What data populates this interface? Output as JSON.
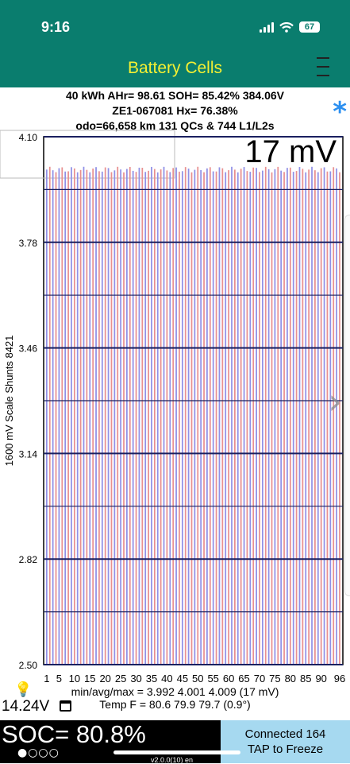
{
  "status_bar": {
    "time": "9:16",
    "battery_level": "67"
  },
  "nav": {
    "title": "Battery Cells",
    "menu_icon": "hamburger-menu-icon"
  },
  "summary": {
    "line1": "40 kWh  AHr= 98.61  SOH= 85.42%  384.06V",
    "line2": "ZE1-067081  Hx= 76.38%",
    "line3": "odo=66,658 km 131 QCs & 744 L1/L2s"
  },
  "chart_data": {
    "type": "bar",
    "ylabel": "1600 mV Scale  Shunts 8421",
    "ylim": [
      2.5,
      4.1
    ],
    "y_ticks": [
      "4.10",
      "3.78",
      "3.46",
      "3.14",
      "2.82",
      "2.50"
    ],
    "x_ticks": [
      "1",
      "5",
      "10",
      "15",
      "20",
      "25",
      "30",
      "35",
      "40",
      "45",
      "50",
      "55",
      "60",
      "65",
      "70",
      "75",
      "80",
      "85",
      "90",
      "96"
    ],
    "delta_label": "17 mV",
    "cell_count": 96,
    "cell_voltage_min": 3.992,
    "cell_voltage_avg": 4.001,
    "cell_voltage_max": 4.009,
    "colors": {
      "odd": "#9090e6",
      "even": "#e89090"
    }
  },
  "stats": {
    "minavgmax": "min/avg/max = 3.992 4.001 4.009  (17 mV)",
    "temp": "Temp F = 80.6  79.9  79.7  (0.9°)"
  },
  "aux_voltage": "14.24V",
  "soc": "SOC= 80.8%",
  "page_dots": "●○○○",
  "connection": {
    "line1": "Connected 164",
    "line2": "TAP to Freeze"
  },
  "version": "v2.0.0(10) en"
}
